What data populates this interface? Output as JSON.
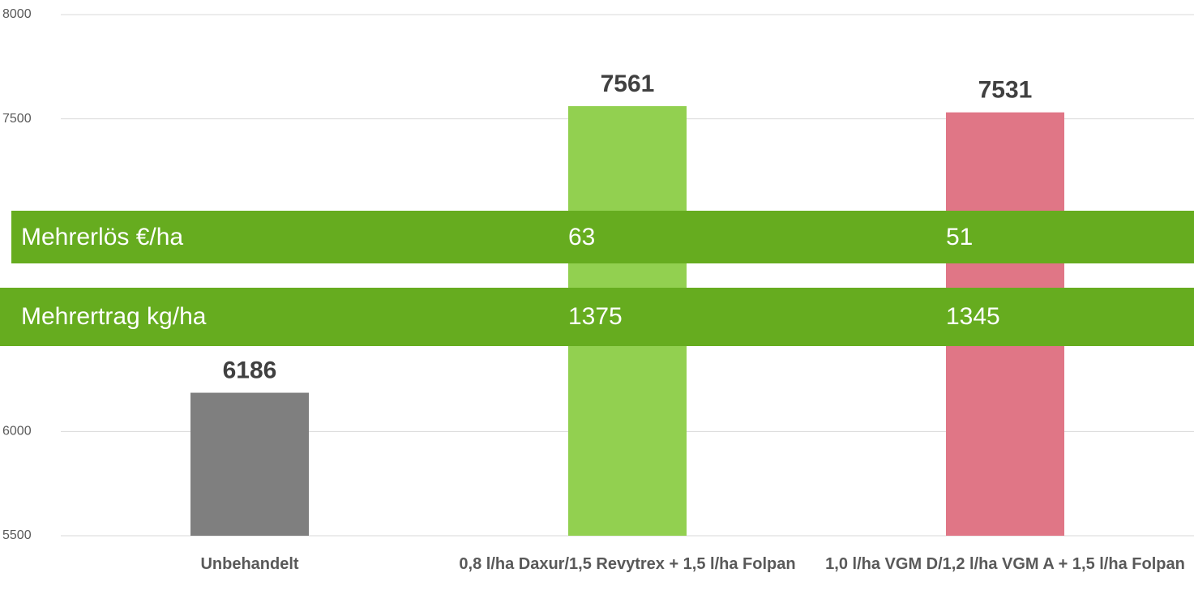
{
  "chart_data": {
    "type": "bar",
    "categories": [
      "Unbehandelt",
      "0,8 l/ha Daxur/1,5 Revytrex + 1,5 l/ha Folpan",
      "1,0 l/ha VGM D/1,2 l/ha VGM A + 1,5 l/ha Folpan"
    ],
    "values": [
      6186,
      7561,
      7531
    ],
    "colors": [
      "#7f7f7f",
      "#92d050",
      "#e07686"
    ],
    "ylim": [
      5500,
      8000
    ],
    "yticks": [
      5500,
      6000,
      7500,
      8000
    ],
    "grid": true,
    "bands": [
      {
        "label": "Mehrerlös €/ha",
        "values": [
          null,
          63,
          51
        ]
      },
      {
        "label": "Mehrertrag kg/ha",
        "values": [
          null,
          1375,
          1345
        ]
      }
    ]
  }
}
